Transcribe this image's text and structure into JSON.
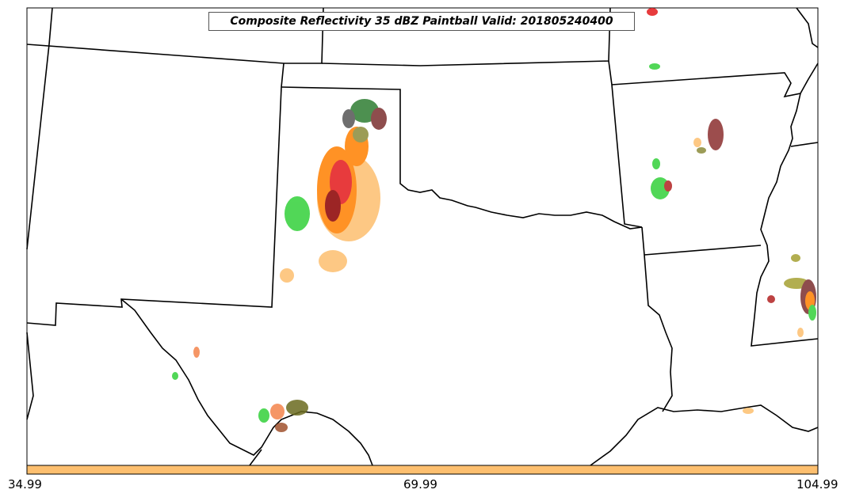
{
  "title": "Composite Reflectivity 35 dBZ Paintball Valid: 201805240400",
  "colorbar": {
    "ticks": [
      "34.99",
      "69.99",
      "104.99"
    ],
    "color": "#fdbf6f"
  },
  "paint_colors": [
    "#e31a1c",
    "#fb9a99",
    "#33a02c",
    "#b2df8a",
    "#ff7f00",
    "#fdbf6f",
    "#6a3d9a",
    "#8b0000",
    "#556b2f",
    "#a0522d",
    "#bdb76b",
    "#808080"
  ],
  "map": {
    "outline_color": "#000000",
    "region": "Southern Plains (NM, TX, OK, LA, MS)"
  }
}
